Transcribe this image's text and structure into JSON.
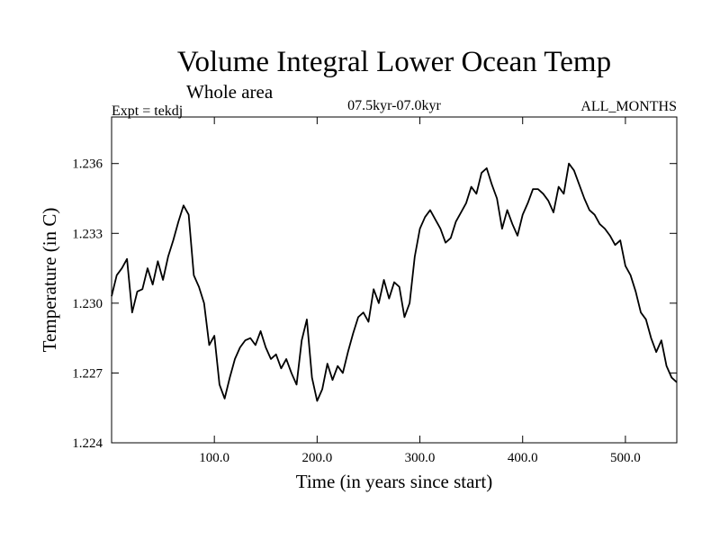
{
  "header": {
    "title": "Volume Integral Lower Ocean Temp",
    "subtitle": "Whole area",
    "expt_label": "Expt = tekdj",
    "period_label": "07.5kyr-07.0kyr",
    "months_label": "ALL_MONTHS"
  },
  "chart_data": {
    "type": "line",
    "title": "Volume Integral Lower Ocean Temp",
    "subtitle": "Whole area",
    "xlabel": "Time (in years since start)",
    "ylabel": "Temperature (in C)",
    "xlim": [
      0,
      550
    ],
    "ylim": [
      1.224,
      1.238
    ],
    "x_ticks": [
      100,
      200,
      300,
      400,
      500
    ],
    "x_tick_labels": [
      "100.0",
      "200.0",
      "300.0",
      "400.0",
      "500.0"
    ],
    "y_ticks": [
      1.224,
      1.227,
      1.23,
      1.233,
      1.236
    ],
    "y_tick_labels": [
      "1.224",
      "1.227",
      "1.230",
      "1.233",
      "1.236"
    ],
    "grid": false,
    "legend": "none",
    "series": [
      {
        "name": "tekdj",
        "color": "#000000",
        "x": [
          0,
          5,
          10,
          15,
          20,
          25,
          30,
          35,
          40,
          45,
          50,
          55,
          60,
          65,
          70,
          75,
          80,
          85,
          90,
          95,
          100,
          105,
          110,
          115,
          120,
          125,
          130,
          135,
          140,
          145,
          150,
          155,
          160,
          165,
          170,
          175,
          180,
          185,
          190,
          195,
          200,
          205,
          210,
          215,
          220,
          225,
          230,
          235,
          240,
          245,
          250,
          255,
          260,
          265,
          270,
          275,
          280,
          285,
          290,
          295,
          300,
          305,
          310,
          315,
          320,
          325,
          330,
          335,
          340,
          345,
          350,
          355,
          360,
          365,
          370,
          375,
          380,
          385,
          390,
          395,
          400,
          405,
          410,
          415,
          420,
          425,
          430,
          435,
          440,
          445,
          450,
          455,
          460,
          465,
          470,
          475,
          480,
          485,
          490,
          495,
          500,
          505,
          510,
          515,
          520,
          525,
          530,
          535,
          540,
          545,
          550
        ],
        "values": [
          1.2303,
          1.2312,
          1.2315,
          1.2319,
          1.2296,
          1.2305,
          1.2306,
          1.2315,
          1.2308,
          1.2318,
          1.231,
          1.232,
          1.2327,
          1.2335,
          1.2342,
          1.2338,
          1.2312,
          1.2307,
          1.23,
          1.2282,
          1.2286,
          1.2265,
          1.2259,
          1.2268,
          1.2276,
          1.2281,
          1.2284,
          1.2285,
          1.2282,
          1.2288,
          1.2281,
          1.2276,
          1.2278,
          1.2272,
          1.2276,
          1.227,
          1.2265,
          1.2284,
          1.2293,
          1.2268,
          1.2258,
          1.2263,
          1.2274,
          1.2267,
          1.2273,
          1.227,
          1.2279,
          1.2287,
          1.2294,
          1.2296,
          1.2292,
          1.2306,
          1.23,
          1.231,
          1.2302,
          1.2309,
          1.2307,
          1.2294,
          1.23,
          1.232,
          1.2332,
          1.2337,
          1.234,
          1.2336,
          1.2332,
          1.2326,
          1.2328,
          1.2335,
          1.2339,
          1.2343,
          1.235,
          1.2347,
          1.2356,
          1.2358,
          1.2351,
          1.2345,
          1.2332,
          1.234,
          1.2334,
          1.2329,
          1.2338,
          1.2343,
          1.2349,
          1.2349,
          1.2347,
          1.2344,
          1.2339,
          1.235,
          1.2347,
          1.236,
          1.2357,
          1.2351,
          1.2345,
          1.234,
          1.2338,
          1.2334,
          1.2332,
          1.2329,
          1.2325,
          1.2327,
          1.2316,
          1.2312,
          1.2305,
          1.2296,
          1.2293,
          1.2285,
          1.2279,
          1.2284,
          1.2273,
          1.2268,
          1.2266
        ]
      }
    ]
  }
}
